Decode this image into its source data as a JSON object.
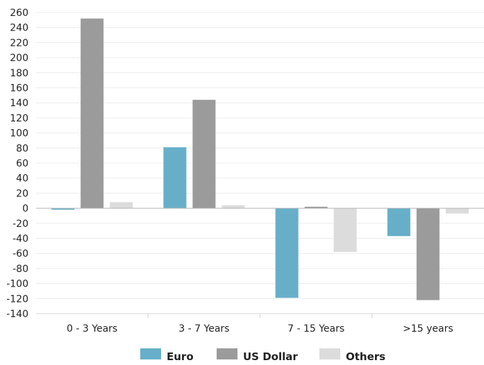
{
  "chart_data": {
    "type": "bar",
    "categories": [
      "0 - 3 Years",
      "3 - 7 Years",
      "7 - 15 Years",
      ">15 years"
    ],
    "series": [
      {
        "name": "Euro",
        "color": "#67afc9",
        "values": [
          -2,
          81,
          -119,
          -37
        ]
      },
      {
        "name": "US Dollar",
        "color": "#9b9b9b",
        "values": [
          252,
          144,
          2,
          -122
        ]
      },
      {
        "name": "Others",
        "color": "#dcdcdc",
        "values": [
          8,
          4,
          -58,
          -7
        ]
      }
    ],
    "ylim": [
      -140,
      260
    ],
    "yticks": [
      260,
      240,
      220,
      200,
      180,
      160,
      140,
      120,
      100,
      80,
      60,
      40,
      20,
      0,
      -20,
      -40,
      -60,
      -80,
      -100,
      -120,
      -140
    ],
    "grid": true,
    "legend_position": "bottom-center"
  }
}
